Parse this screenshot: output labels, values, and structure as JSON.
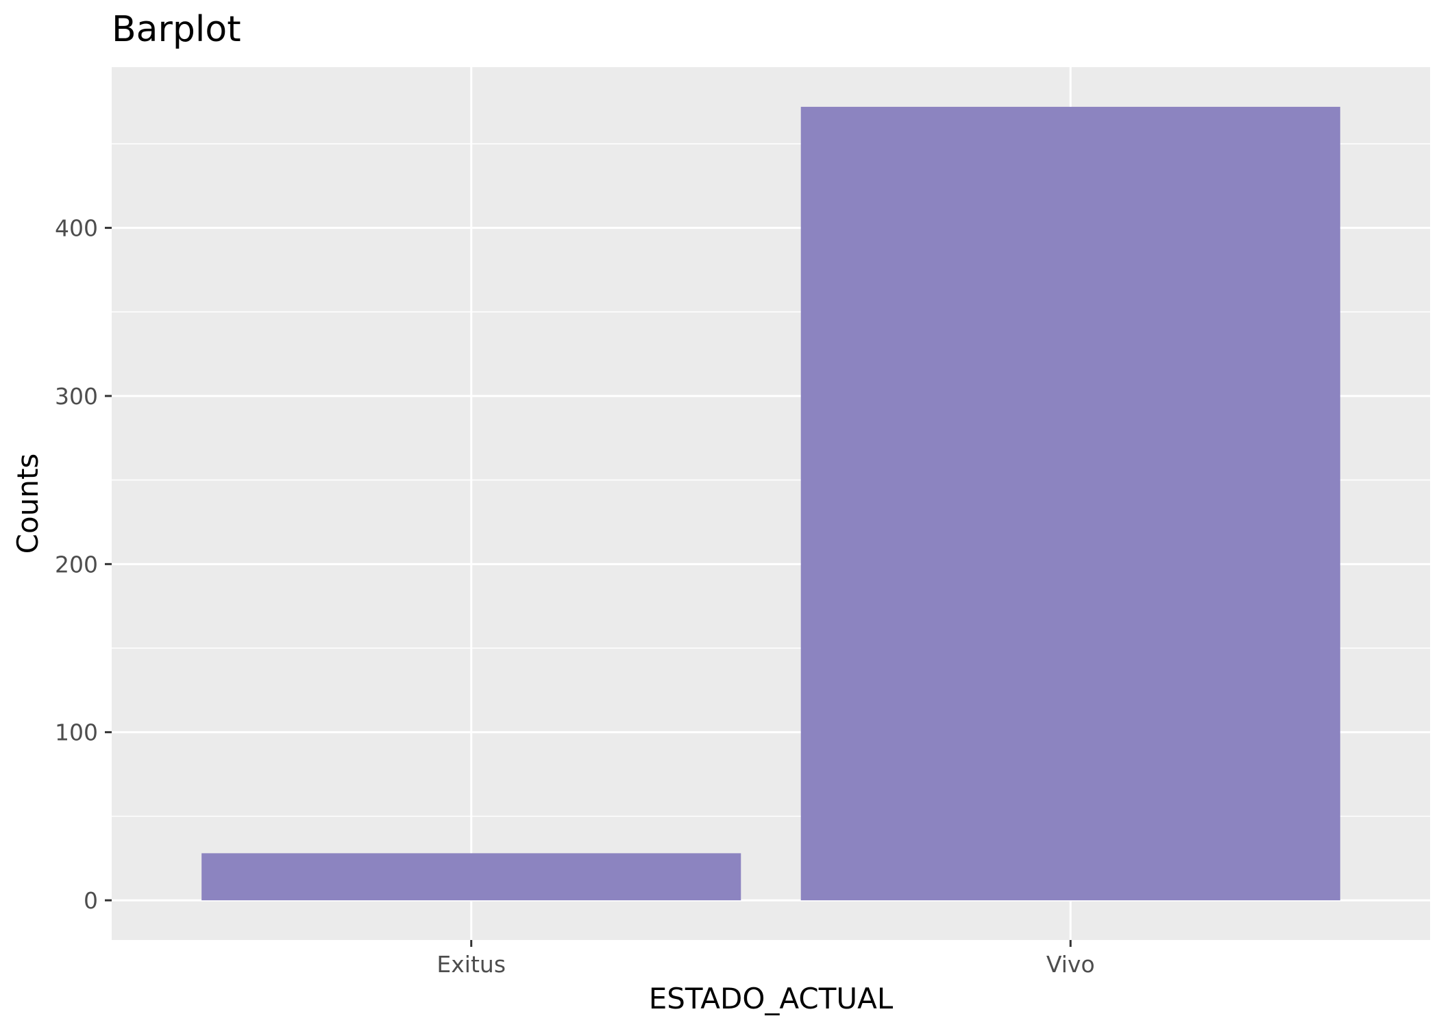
{
  "chart_data": {
    "type": "bar",
    "title": "Barplot",
    "xlabel": "ESTADO_ACTUAL",
    "ylabel": "Counts",
    "categories": [
      "Exitus",
      "Vivo"
    ],
    "values": [
      28,
      472
    ],
    "ylim": [
      -23.6,
      495.6
    ],
    "yticks": [
      0,
      100,
      200,
      300,
      400
    ],
    "ytick_labels": [
      "0",
      "100",
      "200",
      "300",
      "400"
    ],
    "grid": true,
    "legend": "none",
    "colors": {
      "bar": "#8c84c0",
      "panel": "#ebebeb",
      "grid": "#ffffff",
      "tick_text": "#4d4d4d"
    }
  }
}
